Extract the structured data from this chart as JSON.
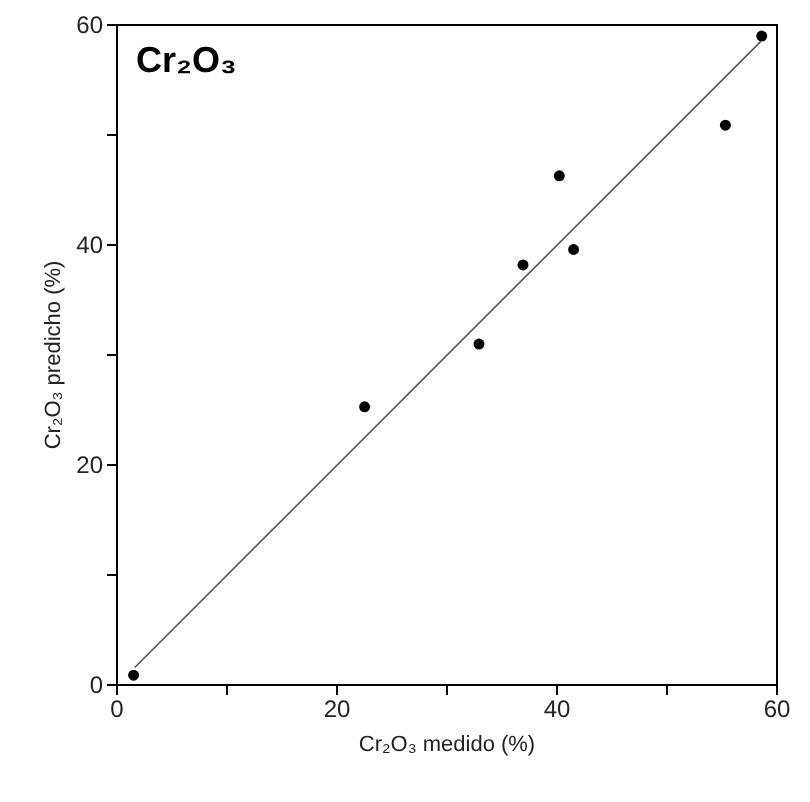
{
  "chart_data": {
    "type": "scatter",
    "title": "Cr₂O₃",
    "xlabel": "Cr₂O₃ medido (%)",
    "ylabel": "Cr₂O₃ predicho (%)",
    "xlim": [
      0,
      60
    ],
    "ylim": [
      0,
      60
    ],
    "xticks": [
      0,
      {
        "value": 10,
        "label": null
      },
      20,
      {
        "value": 30,
        "label": null
      },
      40,
      {
        "value": 50,
        "label": null
      },
      60
    ],
    "yticks": [
      0,
      {
        "value": 10,
        "label": null
      },
      20,
      {
        "value": 30,
        "label": null
      },
      40,
      {
        "value": 50,
        "label": null
      },
      60
    ],
    "grid": false,
    "series": [
      {
        "marker": "circle",
        "color": "#000000",
        "x": [
          1.6,
          22.6,
          33.0,
          37.0,
          40.3,
          41.6,
          55.4,
          58.7
        ],
        "values": [
          0.8,
          25.2,
          30.9,
          38.1,
          46.2,
          39.5,
          50.8,
          58.9
        ]
      },
      {
        "type": "line",
        "marker": "none",
        "color": "#555555",
        "x": [
          1.7,
          58.6
        ],
        "values": [
          1.5,
          58.4
        ]
      }
    ]
  }
}
